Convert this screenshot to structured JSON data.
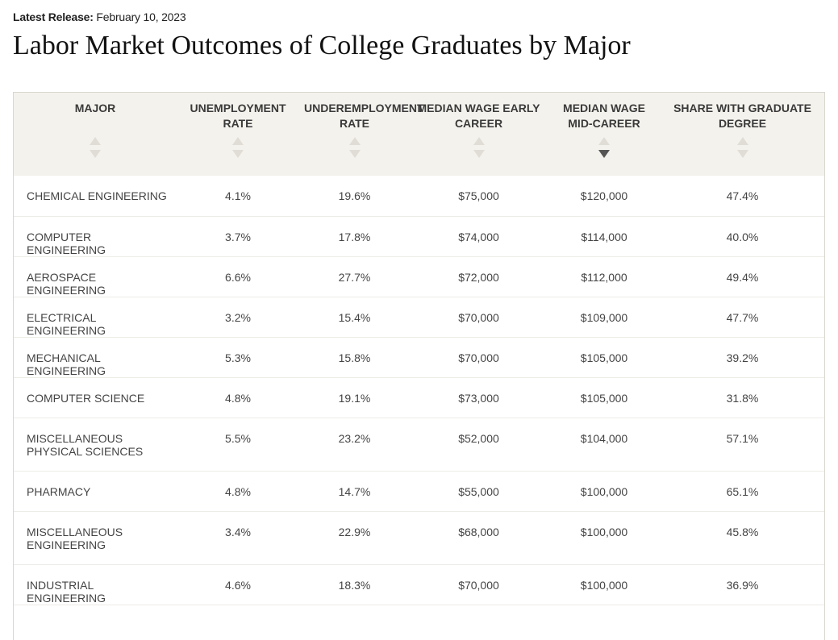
{
  "release": {
    "label": "Latest Release:",
    "date": "February 10, 2023"
  },
  "title": "Labor Market Outcomes of College Graduates by Major",
  "columns": [
    {
      "label": "MAJOR",
      "sort": "none"
    },
    {
      "label": "UNEMPLOYMENT RATE",
      "sort": "none"
    },
    {
      "label": "UNDEREMPLOYMENT RATE",
      "sort": "none"
    },
    {
      "label": "MEDIAN WAGE EARLY CAREER",
      "sort": "none"
    },
    {
      "label": "MEDIAN WAGE MID-CAREER",
      "sort": "descending"
    },
    {
      "label": "SHARE WITH GRADUATE DEGREE",
      "sort": "none"
    }
  ],
  "rows": [
    {
      "major": "CHEMICAL ENGINEERING",
      "unemployment": "4.1%",
      "underemployment": "19.6%",
      "early": "$75,000",
      "mid": "$120,000",
      "grad": "47.4%"
    },
    {
      "major": "COMPUTER ENGINEERING",
      "unemployment": "3.7%",
      "underemployment": "17.8%",
      "early": "$74,000",
      "mid": "$114,000",
      "grad": "40.0%"
    },
    {
      "major": "AEROSPACE ENGINEERING",
      "unemployment": "6.6%",
      "underemployment": "27.7%",
      "early": "$72,000",
      "mid": "$112,000",
      "grad": "49.4%"
    },
    {
      "major": "ELECTRICAL ENGINEERING",
      "unemployment": "3.2%",
      "underemployment": "15.4%",
      "early": "$70,000",
      "mid": "$109,000",
      "grad": "47.7%"
    },
    {
      "major": "MECHANICAL ENGINEERING",
      "unemployment": "5.3%",
      "underemployment": "15.8%",
      "early": "$70,000",
      "mid": "$105,000",
      "grad": "39.2%"
    },
    {
      "major": "COMPUTER SCIENCE",
      "unemployment": "4.8%",
      "underemployment": "19.1%",
      "early": "$73,000",
      "mid": "$105,000",
      "grad": "31.8%"
    },
    {
      "major": "MISCELLANEOUS PHYSICAL SCIENCES",
      "unemployment": "5.5%",
      "underemployment": "23.2%",
      "early": "$52,000",
      "mid": "$104,000",
      "grad": "57.1%"
    },
    {
      "major": "PHARMACY",
      "unemployment": "4.8%",
      "underemployment": "14.7%",
      "early": "$55,000",
      "mid": "$100,000",
      "grad": "65.1%"
    },
    {
      "major": "MISCELLANEOUS ENGINEERING",
      "unemployment": "3.4%",
      "underemployment": "22.9%",
      "early": "$68,000",
      "mid": "$100,000",
      "grad": "45.8%"
    },
    {
      "major": "INDUSTRIAL ENGINEERING",
      "unemployment": "4.6%",
      "underemployment": "18.3%",
      "early": "$70,000",
      "mid": "$100,000",
      "grad": "36.9%"
    }
  ]
}
